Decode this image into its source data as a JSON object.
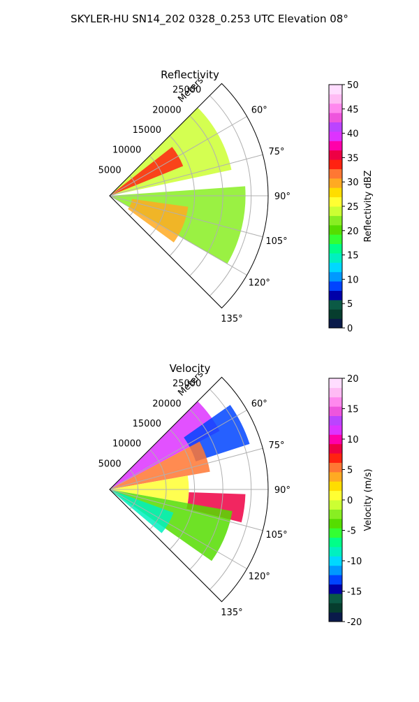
{
  "figure": {
    "title": "SKYLER-HU  SN14_202  0328_0.253 UTC Elevation 08°"
  },
  "chart_data": [
    {
      "type": "heatmap",
      "title": "Reflectivity",
      "projection": "polar-sector",
      "radial_label": "Meters",
      "radial_ticks": [
        5000,
        10000,
        15000,
        20000,
        25000
      ],
      "radial_tick_labels": [
        "5000",
        "10000",
        "15000",
        "20000",
        "25000"
      ],
      "rlim": [
        0,
        28000
      ],
      "azimuth_ticks_deg": [
        60,
        75,
        90,
        105,
        120,
        135
      ],
      "azimuth_tick_labels": [
        "60°",
        "75°",
        "90°",
        "105°",
        "120°",
        "135°"
      ],
      "azimuth_range_deg": [
        45,
        135
      ],
      "grid": true,
      "colorbar": {
        "label": "Reflectivity dBZ",
        "range": [
          0,
          50
        ],
        "ticks": [
          0,
          5,
          10,
          15,
          20,
          25,
          30,
          35,
          40,
          45,
          50
        ],
        "tick_labels": [
          "0",
          "5",
          "10",
          "15",
          "20",
          "25",
          "30",
          "35",
          "40",
          "45",
          "50"
        ],
        "colors": [
          "#0a1a4a",
          "#063d2e",
          "#0b5a45",
          "#0000a8",
          "#0044ff",
          "#0099ff",
          "#00d8ff",
          "#00f0c0",
          "#00ff88",
          "#33ff33",
          "#55dd00",
          "#88ee22",
          "#ccff33",
          "#ffff33",
          "#ffdd00",
          "#ffaa22",
          "#ff7733",
          "#ff2211",
          "#ee0044",
          "#ff00aa",
          "#dd33ff",
          "#bb44ff",
          "#ee55dd",
          "#ff88ee",
          "#ffbbf4",
          "#ffddff"
        ]
      },
      "echo_regions": [
        {
          "az": [
            45,
            78
          ],
          "r": [
            0,
            22000
          ],
          "level": 24
        },
        {
          "az": [
            52,
            68
          ],
          "r": [
            0,
            14000
          ],
          "level": 34
        },
        {
          "az": [
            86,
            120
          ],
          "r": [
            0,
            24000
          ],
          "level": 22
        },
        {
          "az": [
            98,
            126
          ],
          "r": [
            4000,
            14000
          ],
          "level": 29
        }
      ]
    },
    {
      "type": "heatmap",
      "title": "Velocity",
      "projection": "polar-sector",
      "radial_label": "Meters",
      "radial_ticks": [
        5000,
        10000,
        15000,
        20000,
        25000
      ],
      "radial_tick_labels": [
        "5000",
        "10000",
        "15000",
        "20000",
        "25000"
      ],
      "rlim": [
        0,
        28000
      ],
      "azimuth_ticks_deg": [
        60,
        75,
        90,
        105,
        120,
        135
      ],
      "azimuth_tick_labels": [
        "60°",
        "75°",
        "90°",
        "105°",
        "120°",
        "135°"
      ],
      "azimuth_range_deg": [
        45,
        135
      ],
      "grid": true,
      "colorbar": {
        "label": "Velocity (m/s)",
        "range": [
          -20,
          20
        ],
        "ticks": [
          -20,
          -15,
          -10,
          -5,
          0,
          5,
          10,
          15,
          20
        ],
        "tick_labels": [
          "-20",
          "-15",
          "-10",
          "-5",
          "0",
          "5",
          "10",
          "15",
          "20"
        ],
        "colors": [
          "#0a1a4a",
          "#063d2e",
          "#0b5a45",
          "#0000a8",
          "#0044ff",
          "#0099ff",
          "#00d8ff",
          "#00f0c0",
          "#00ff88",
          "#33ff33",
          "#55dd00",
          "#88ee22",
          "#ccff33",
          "#ffff33",
          "#ffdd00",
          "#ffaa22",
          "#ff7733",
          "#ff2211",
          "#ee0044",
          "#ff00aa",
          "#dd33ff",
          "#bb44ff",
          "#ee55dd",
          "#ff88ee",
          "#ffbbf4",
          "#ffddff"
        ]
      },
      "echo_regions": [
        {
          "az": [
            45,
            62
          ],
          "r": [
            0,
            22000
          ],
          "level": 11
        },
        {
          "az": [
            55,
            72
          ],
          "r": [
            16000,
            26000
          ],
          "level": -13
        },
        {
          "az": [
            62,
            80
          ],
          "r": [
            0,
            18000
          ],
          "level": 5
        },
        {
          "az": [
            80,
            100
          ],
          "r": [
            0,
            14000
          ],
          "level": 1
        },
        {
          "az": [
            92,
            104
          ],
          "r": [
            14000,
            24000
          ],
          "level": 8
        },
        {
          "az": [
            100,
            125
          ],
          "r": [
            0,
            22000
          ],
          "level": -4
        },
        {
          "az": [
            110,
            130
          ],
          "r": [
            0,
            12000
          ],
          "level": -9
        }
      ]
    }
  ]
}
